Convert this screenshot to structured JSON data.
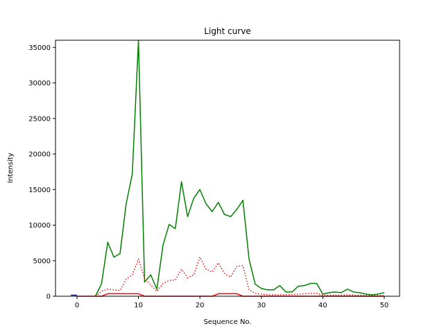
{
  "chart_data": {
    "type": "line",
    "title": "Light curve",
    "xlabel": "Sequence No.",
    "ylabel": "Intensity",
    "xlim": [
      -3.5,
      52.5
    ],
    "ylim": [
      0,
      36000
    ],
    "xticks": [
      0,
      10,
      20,
      30,
      40,
      50
    ],
    "yticks": [
      0,
      5000,
      10000,
      15000,
      20000,
      25000,
      30000,
      35000
    ],
    "grid": false,
    "series": [
      {
        "color": "#008000",
        "style": "solid",
        "x": [
          3,
          4,
          5,
          6,
          7,
          8,
          9,
          10,
          11,
          12,
          13,
          14,
          15,
          16,
          17,
          18,
          19,
          20,
          21,
          22,
          23,
          24,
          25,
          26,
          27,
          28,
          29,
          30,
          31,
          32,
          33,
          34,
          35,
          36,
          37,
          38,
          39,
          40,
          41,
          42,
          43,
          44,
          45,
          46,
          47,
          48,
          49,
          50
        ],
        "values": [
          0,
          1800,
          7600,
          5500,
          6000,
          13000,
          17200,
          36000,
          2000,
          3000,
          1000,
          7200,
          10100,
          9500,
          16100,
          11200,
          13800,
          15000,
          13000,
          11900,
          13200,
          11500,
          11200,
          12200,
          13500,
          5200,
          1700,
          1100,
          900,
          900,
          1500,
          600,
          600,
          1400,
          1500,
          1800,
          1800,
          300,
          500,
          600,
          500,
          1000,
          600,
          500,
          300,
          200,
          300,
          500
        ]
      },
      {
        "color": "#ff0000",
        "style": "dotted",
        "x": [
          3,
          4,
          5,
          6,
          7,
          8,
          9,
          10,
          11,
          12,
          13,
          14,
          15,
          16,
          17,
          18,
          19,
          20,
          21,
          22,
          23,
          24,
          25,
          26,
          27,
          28,
          29,
          30,
          31,
          32,
          33,
          34,
          35,
          36,
          37,
          38,
          39,
          40,
          41,
          42,
          43,
          44,
          45,
          46,
          47,
          48,
          49,
          50
        ],
        "values": [
          0,
          700,
          1000,
          900,
          800,
          2400,
          3000,
          5200,
          2500,
          1600,
          700,
          1800,
          2200,
          2300,
          3800,
          2600,
          3000,
          5500,
          3800,
          3400,
          4700,
          3200,
          2700,
          4200,
          4300,
          900,
          400,
          300,
          200,
          200,
          200,
          200,
          250,
          300,
          350,
          400,
          400,
          150,
          150,
          150,
          150,
          200,
          150,
          150,
          100,
          100,
          100,
          100
        ]
      },
      {
        "color": "#ff0000",
        "style": "solid",
        "x": [
          3,
          4,
          5,
          6,
          7,
          8,
          9,
          10,
          11,
          12,
          13,
          14,
          15,
          16,
          17,
          18,
          19,
          20,
          21,
          22,
          23,
          24,
          25,
          26,
          27,
          28,
          29,
          30,
          31,
          32,
          33,
          34,
          35,
          36,
          37,
          38,
          39,
          40,
          41,
          42,
          43,
          44,
          45,
          46,
          47,
          48,
          49,
          50
        ],
        "values": [
          0,
          0,
          350,
          350,
          350,
          350,
          350,
          350,
          0,
          0,
          0,
          0,
          0,
          0,
          0,
          0,
          0,
          0,
          0,
          0,
          350,
          350,
          350,
          350,
          0,
          0,
          0,
          0,
          0,
          0,
          0,
          0,
          0,
          0,
          0,
          0,
          0,
          0,
          0,
          0,
          0,
          0,
          0,
          0,
          0,
          0,
          0,
          0
        ]
      },
      {
        "color": "#0000ff",
        "style": "solid",
        "x": [
          -1,
          0
        ],
        "values": [
          150,
          150
        ]
      },
      {
        "color": "#ff0000",
        "style": "solid",
        "x": [
          0,
          1,
          2,
          3
        ],
        "values": [
          0,
          0,
          0,
          0
        ]
      }
    ]
  }
}
